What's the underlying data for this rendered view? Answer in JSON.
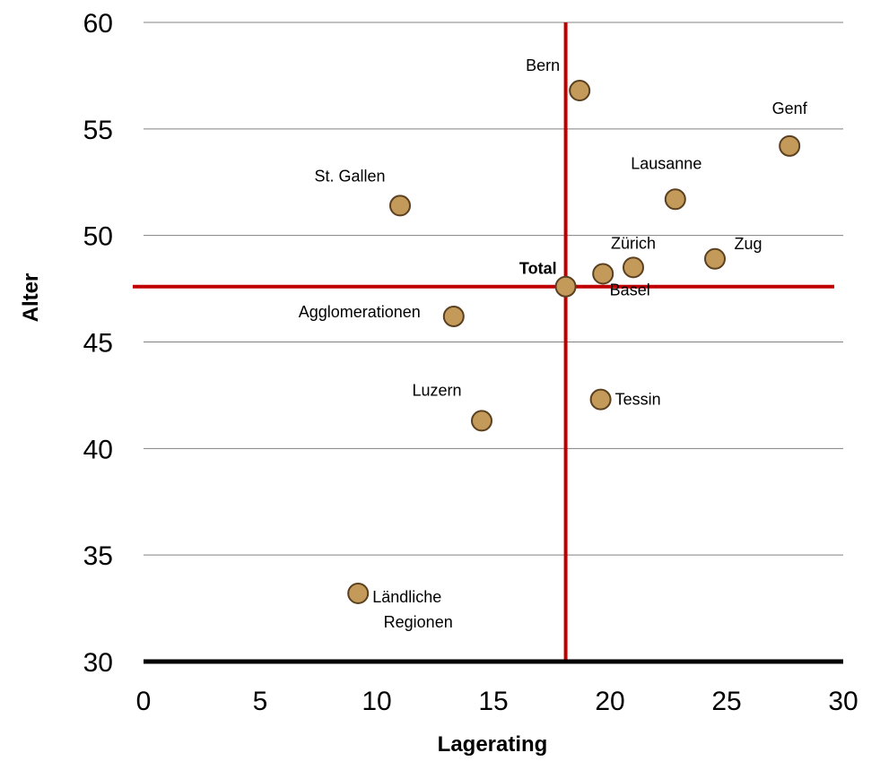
{
  "chart_data": {
    "type": "scatter",
    "title": "",
    "xlabel": "Lagerating",
    "ylabel": "Alter",
    "xlim": [
      0,
      30
    ],
    "ylim": [
      30,
      60
    ],
    "x_ticks": [
      "0",
      "5",
      "10",
      "15",
      "20",
      "25",
      "30"
    ],
    "y_ticks": [
      "30",
      "35",
      "40",
      "45",
      "50",
      "55",
      "60"
    ],
    "grid": "horizontal",
    "reference_lines": {
      "x": 18.1,
      "y": 47.6,
      "color": "#c00000"
    },
    "marker_color": "#c49a5a",
    "marker_edge": "#5a4020",
    "points": [
      {
        "label": "Bern",
        "x": 18.7,
        "y": 56.8
      },
      {
        "label": "Genf",
        "x": 27.7,
        "y": 54.2
      },
      {
        "label": "Lausanne",
        "x": 22.8,
        "y": 51.7
      },
      {
        "label": "St. Gallen",
        "x": 11.0,
        "y": 51.4
      },
      {
        "label": "Zürich",
        "x": 21.0,
        "y": 48.5
      },
      {
        "label": "Zug",
        "x": 24.5,
        "y": 48.9
      },
      {
        "label": "Basel",
        "x": 19.7,
        "y": 48.2
      },
      {
        "label": "Total",
        "x": 18.1,
        "y": 47.6
      },
      {
        "label": "Agglomerationen",
        "x": 13.3,
        "y": 46.2
      },
      {
        "label": "Tessin",
        "x": 19.6,
        "y": 42.3
      },
      {
        "label": "Luzern",
        "x": 14.5,
        "y": 41.3
      },
      {
        "label": "Ländliche Regionen",
        "x": 9.2,
        "y": 33.2
      }
    ]
  }
}
